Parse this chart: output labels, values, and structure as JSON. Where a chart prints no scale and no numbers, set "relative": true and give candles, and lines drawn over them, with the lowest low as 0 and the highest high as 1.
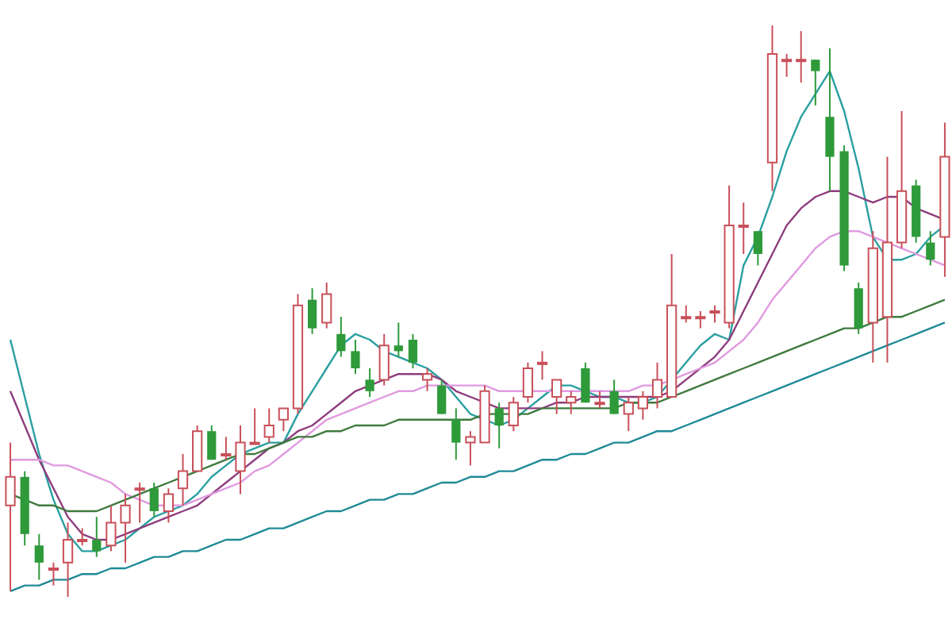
{
  "chart_data": {
    "type": "candlestick",
    "relative": true,
    "categories": [
      null,
      null,
      null,
      null,
      null,
      null,
      null,
      null,
      null,
      null,
      null,
      null,
      null,
      null,
      null,
      null,
      null,
      null,
      null,
      null,
      null,
      null,
      null,
      null,
      null,
      null,
      null,
      null,
      null,
      null,
      null,
      null,
      null,
      null,
      null,
      null,
      null,
      null,
      null,
      null,
      null,
      null,
      null,
      null,
      null,
      null,
      null,
      null,
      null,
      null,
      null,
      null,
      null,
      null,
      null,
      null,
      null,
      null,
      null,
      null,
      null,
      null,
      null,
      null,
      null,
      null
    ],
    "ohlc": [
      [
        0.16,
        0.27,
        0.01,
        0.21
      ],
      [
        0.21,
        0.22,
        0.09,
        0.11
      ],
      [
        0.09,
        0.11,
        0.03,
        0.06
      ],
      [
        0.05,
        0.06,
        0.02,
        0.05
      ],
      [
        0.06,
        0.13,
        0,
        0.1
      ],
      [
        0.1,
        0.12,
        0.09,
        0.1
      ],
      [
        0.1,
        0.14,
        0.07,
        0.08
      ],
      [
        0.09,
        0.16,
        0.08,
        0.13
      ],
      [
        0.13,
        0.18,
        0.06,
        0.16
      ],
      [
        0.19,
        0.2,
        0.13,
        0.19
      ],
      [
        0.19,
        0.2,
        0.14,
        0.15
      ],
      [
        0.15,
        0.19,
        0.13,
        0.18
      ],
      [
        0.19,
        0.25,
        0.16,
        0.22
      ],
      [
        0.22,
        0.3,
        0.22,
        0.29
      ],
      [
        0.29,
        0.3,
        0.24,
        0.24
      ],
      [
        0.25,
        0.28,
        0.24,
        0.25
      ],
      [
        0.22,
        0.3,
        0.18,
        0.27
      ],
      [
        0.27,
        0.33,
        0.27,
        0.27
      ],
      [
        0.28,
        0.33,
        0.27,
        0.3
      ],
      [
        0.31,
        0.33,
        0.29,
        0.33
      ],
      [
        0.33,
        0.53,
        0.32,
        0.51
      ],
      [
        0.52,
        0.54,
        0.46,
        0.47
      ],
      [
        0.48,
        0.55,
        0.47,
        0.53
      ],
      [
        0.46,
        0.49,
        0.42,
        0.43
      ],
      [
        0.43,
        0.45,
        0.39,
        0.4
      ],
      [
        0.38,
        0.4,
        0.35,
        0.36
      ],
      [
        0.38,
        0.46,
        0.37,
        0.44
      ],
      [
        0.44,
        0.48,
        0.42,
        0.43
      ],
      [
        0.45,
        0.46,
        0.4,
        0.41
      ],
      [
        0.38,
        0.4,
        0.36,
        0.39
      ],
      [
        0.37,
        0.38,
        0.32,
        0.32
      ],
      [
        0.31,
        0.33,
        0.24,
        0.27
      ],
      [
        0.27,
        0.29,
        0.23,
        0.28
      ],
      [
        0.27,
        0.37,
        0.27,
        0.36
      ],
      [
        0.33,
        0.34,
        0.26,
        0.3
      ],
      [
        0.3,
        0.35,
        0.29,
        0.34
      ],
      [
        0.35,
        0.41,
        0.34,
        0.4
      ],
      [
        0.41,
        0.43,
        0.38,
        0.41
      ],
      [
        0.35,
        0.38,
        0.32,
        0.38
      ],
      [
        0.34,
        0.36,
        0.32,
        0.35
      ],
      [
        0.4,
        0.41,
        0.34,
        0.34
      ],
      [
        0.34,
        0.36,
        0.33,
        0.34
      ],
      [
        0.36,
        0.38,
        0.32,
        0.32
      ],
      [
        0.32,
        0.35,
        0.29,
        0.34
      ],
      [
        0.33,
        0.36,
        0.31,
        0.35
      ],
      [
        0.35,
        0.41,
        0.33,
        0.38
      ],
      [
        0.35,
        0.6,
        0.35,
        0.51
      ],
      [
        0.49,
        0.51,
        0.48,
        0.49
      ],
      [
        0.49,
        0.5,
        0.47,
        0.49
      ],
      [
        0.5,
        0.51,
        0.48,
        0.5
      ],
      [
        0.48,
        0.72,
        0.47,
        0.65
      ],
      [
        0.65,
        0.69,
        0.6,
        0.65
      ],
      [
        0.64,
        0.64,
        0.58,
        0.6
      ],
      [
        0.76,
        1.0,
        0.71,
        0.95
      ],
      [
        0.94,
        0.95,
        0.91,
        0.94
      ],
      [
        0.94,
        0.99,
        0.9,
        0.94
      ],
      [
        0.94,
        0.94,
        0.86,
        0.92
      ],
      [
        0.84,
        0.96,
        0.71,
        0.77
      ],
      [
        0.78,
        0.79,
        0.57,
        0.58
      ],
      [
        0.54,
        0.55,
        0.46,
        0.47
      ],
      [
        0.48,
        0.64,
        0.41,
        0.61
      ],
      [
        0.49,
        0.77,
        0.41,
        0.62
      ],
      [
        0.62,
        0.85,
        0.61,
        0.71
      ],
      [
        0.72,
        0.73,
        0.62,
        0.63
      ],
      [
        0.62,
        0.64,
        0.58,
        0.59
      ],
      [
        0.63,
        0.83,
        0.56,
        0.77
      ]
    ],
    "series": [
      {
        "type": "line",
        "color": "#1f8a96",
        "values": [
          0.01,
          0.02,
          0.02,
          0.03,
          0.03,
          0.04,
          0.04,
          0.05,
          0.05,
          0.06,
          0.07,
          0.07,
          0.08,
          0.08,
          0.09,
          0.1,
          0.1,
          0.11,
          0.12,
          0.12,
          0.13,
          0.14,
          0.15,
          0.15,
          0.16,
          0.17,
          0.17,
          0.18,
          0.18,
          0.19,
          0.2,
          0.2,
          0.21,
          0.21,
          0.22,
          0.22,
          0.23,
          0.24,
          0.24,
          0.25,
          0.25,
          0.26,
          0.27,
          0.27,
          0.28,
          0.29,
          0.29,
          0.3,
          0.31,
          0.32,
          0.33,
          0.34,
          0.35,
          0.36,
          0.37,
          0.38,
          0.39,
          0.4,
          0.41,
          0.42,
          0.43,
          0.44,
          0.45,
          0.46,
          0.47,
          0.48
        ]
      },
      {
        "type": "line",
        "color": "#3e7a3e",
        "values": [
          0.18,
          0.17,
          0.16,
          0.16,
          0.15,
          0.15,
          0.15,
          0.16,
          0.17,
          0.18,
          0.19,
          0.2,
          0.21,
          0.22,
          0.23,
          0.24,
          0.25,
          0.25,
          0.26,
          0.27,
          0.28,
          0.28,
          0.29,
          0.29,
          0.3,
          0.3,
          0.3,
          0.31,
          0.31,
          0.31,
          0.31,
          0.31,
          0.31,
          0.32,
          0.32,
          0.32,
          0.32,
          0.33,
          0.33,
          0.33,
          0.33,
          0.33,
          0.33,
          0.34,
          0.34,
          0.34,
          0.35,
          0.36,
          0.37,
          0.38,
          0.39,
          0.4,
          0.41,
          0.42,
          0.43,
          0.44,
          0.45,
          0.46,
          0.47,
          0.47,
          0.48,
          0.49,
          0.49,
          0.5,
          0.51,
          0.52
        ]
      },
      {
        "type": "line",
        "color": "#e09ae0",
        "values": [
          0.24,
          0.24,
          0.24,
          0.23,
          0.23,
          0.22,
          0.21,
          0.2,
          0.18,
          0.17,
          0.16,
          0.16,
          0.16,
          0.17,
          0.18,
          0.19,
          0.2,
          0.22,
          0.23,
          0.25,
          0.27,
          0.29,
          0.31,
          0.32,
          0.33,
          0.34,
          0.35,
          0.36,
          0.36,
          0.37,
          0.37,
          0.37,
          0.37,
          0.37,
          0.36,
          0.36,
          0.36,
          0.36,
          0.36,
          0.36,
          0.36,
          0.36,
          0.36,
          0.36,
          0.37,
          0.37,
          0.38,
          0.39,
          0.4,
          0.41,
          0.43,
          0.45,
          0.48,
          0.52,
          0.55,
          0.58,
          0.61,
          0.63,
          0.64,
          0.64,
          0.63,
          0.62,
          0.61,
          0.6,
          0.59,
          0.58
        ]
      },
      {
        "type": "line",
        "color": "#8e3d7e",
        "values": [
          0.36,
          0.3,
          0.24,
          0.19,
          0.14,
          0.11,
          0.1,
          0.1,
          0.11,
          0.12,
          0.13,
          0.14,
          0.15,
          0.16,
          0.18,
          0.2,
          0.22,
          0.24,
          0.26,
          0.27,
          0.29,
          0.3,
          0.32,
          0.34,
          0.36,
          0.37,
          0.38,
          0.39,
          0.39,
          0.39,
          0.38,
          0.36,
          0.35,
          0.34,
          0.33,
          0.33,
          0.33,
          0.33,
          0.34,
          0.34,
          0.35,
          0.35,
          0.35,
          0.35,
          0.35,
          0.35,
          0.36,
          0.38,
          0.4,
          0.42,
          0.45,
          0.5,
          0.55,
          0.6,
          0.65,
          0.68,
          0.7,
          0.71,
          0.71,
          0.7,
          0.69,
          0.7,
          0.7,
          0.68,
          0.67,
          0.66
        ]
      },
      {
        "type": "line",
        "color": "#2a9fa0",
        "values": [
          0.45,
          0.35,
          0.25,
          0.17,
          0.11,
          0.08,
          0.08,
          0.09,
          0.1,
          0.12,
          0.14,
          0.15,
          0.16,
          0.18,
          0.21,
          0.23,
          0.25,
          0.26,
          0.27,
          0.27,
          0.32,
          0.36,
          0.4,
          0.44,
          0.46,
          0.45,
          0.43,
          0.42,
          0.41,
          0.4,
          0.38,
          0.35,
          0.32,
          0.31,
          0.3,
          0.31,
          0.33,
          0.35,
          0.37,
          0.37,
          0.36,
          0.35,
          0.35,
          0.34,
          0.34,
          0.35,
          0.38,
          0.41,
          0.44,
          0.46,
          0.45,
          0.58,
          0.63,
          0.7,
          0.78,
          0.84,
          0.88,
          0.92,
          0.85,
          0.75,
          0.63,
          0.59,
          0.59,
          0.6,
          0.63,
          0.65
        ]
      }
    ]
  }
}
